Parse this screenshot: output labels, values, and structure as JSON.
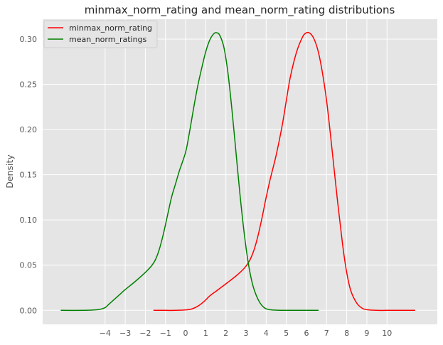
{
  "chart_data": {
    "type": "line",
    "title": "minmax_norm_rating and mean_norm_rating distributions",
    "xlabel": "",
    "ylabel": "Density",
    "xlim": [
      -7.1,
      12.5
    ],
    "ylim": [
      -0.0155,
      0.322
    ],
    "x_ticks": [
      -4,
      -3,
      -2,
      -1,
      0,
      1,
      2,
      3,
      4,
      5,
      6,
      7,
      8,
      9,
      10
    ],
    "x_tick_labels": [
      "−4",
      "−3",
      "−2",
      "−1",
      "0",
      "1",
      "2",
      "3",
      "4",
      "5",
      "6",
      "7",
      "8",
      "9",
      "10"
    ],
    "y_ticks": [
      0.0,
      0.05,
      0.1,
      0.15,
      0.2,
      0.25,
      0.3
    ],
    "y_tick_labels": [
      "0.00",
      "0.05",
      "0.10",
      "0.15",
      "0.20",
      "0.25",
      "0.30"
    ],
    "grid": true,
    "legend_position": "top-left",
    "background_color": "#e5e5e5",
    "grid_color": "#ffffff",
    "series": [
      {
        "name": "minmax_norm_rating",
        "color": "#ff0000",
        "x": [
          -1.6,
          -1.0,
          -0.5,
          0.0,
          0.3,
          0.6,
          0.9,
          1.2,
          1.5,
          1.8,
          2.1,
          2.5,
          2.8,
          3.0,
          3.2,
          3.4,
          3.6,
          3.8,
          4.0,
          4.2,
          4.5,
          4.8,
          5.0,
          5.2,
          5.5,
          5.8,
          6.0,
          6.2,
          6.4,
          6.6,
          6.8,
          7.0,
          7.2,
          7.5,
          7.8,
          8.0,
          8.2,
          8.5,
          8.8,
          9.1,
          9.5,
          10.0,
          11.0,
          11.4
        ],
        "y": [
          0.0,
          0.0,
          0.0,
          0.0005,
          0.0015,
          0.0045,
          0.0095,
          0.016,
          0.021,
          0.026,
          0.031,
          0.038,
          0.044,
          0.049,
          0.056,
          0.067,
          0.083,
          0.103,
          0.125,
          0.145,
          0.172,
          0.205,
          0.232,
          0.258,
          0.285,
          0.302,
          0.307,
          0.306,
          0.299,
          0.285,
          0.262,
          0.232,
          0.193,
          0.13,
          0.072,
          0.042,
          0.022,
          0.008,
          0.002,
          0.0005,
          0.0,
          0.0,
          0.0,
          0.0
        ]
      },
      {
        "name": "mean_norm_ratings",
        "color": "#008000",
        "x": [
          -6.2,
          -5.0,
          -4.5,
          -4.3,
          -4.0,
          -3.8,
          -3.5,
          -3.2,
          -3.0,
          -2.5,
          -2.0,
          -1.7,
          -1.5,
          -1.3,
          -1.1,
          -0.9,
          -0.7,
          -0.5,
          -0.3,
          0.0,
          0.2,
          0.4,
          0.6,
          0.8,
          1.0,
          1.2,
          1.4,
          1.55,
          1.7,
          1.9,
          2.1,
          2.3,
          2.5,
          2.7,
          2.9,
          3.1,
          3.3,
          3.5,
          3.7,
          3.9,
          4.1,
          4.4,
          4.8,
          5.5,
          6.6
        ],
        "y": [
          0.0,
          0.0,
          0.0005,
          0.001,
          0.003,
          0.007,
          0.013,
          0.019,
          0.023,
          0.032,
          0.042,
          0.049,
          0.056,
          0.068,
          0.085,
          0.105,
          0.125,
          0.14,
          0.155,
          0.175,
          0.198,
          0.224,
          0.248,
          0.268,
          0.286,
          0.299,
          0.306,
          0.307,
          0.304,
          0.291,
          0.263,
          0.222,
          0.175,
          0.128,
          0.087,
          0.054,
          0.031,
          0.017,
          0.008,
          0.003,
          0.001,
          0.0003,
          0.0,
          0.0,
          0.0
        ]
      }
    ]
  }
}
